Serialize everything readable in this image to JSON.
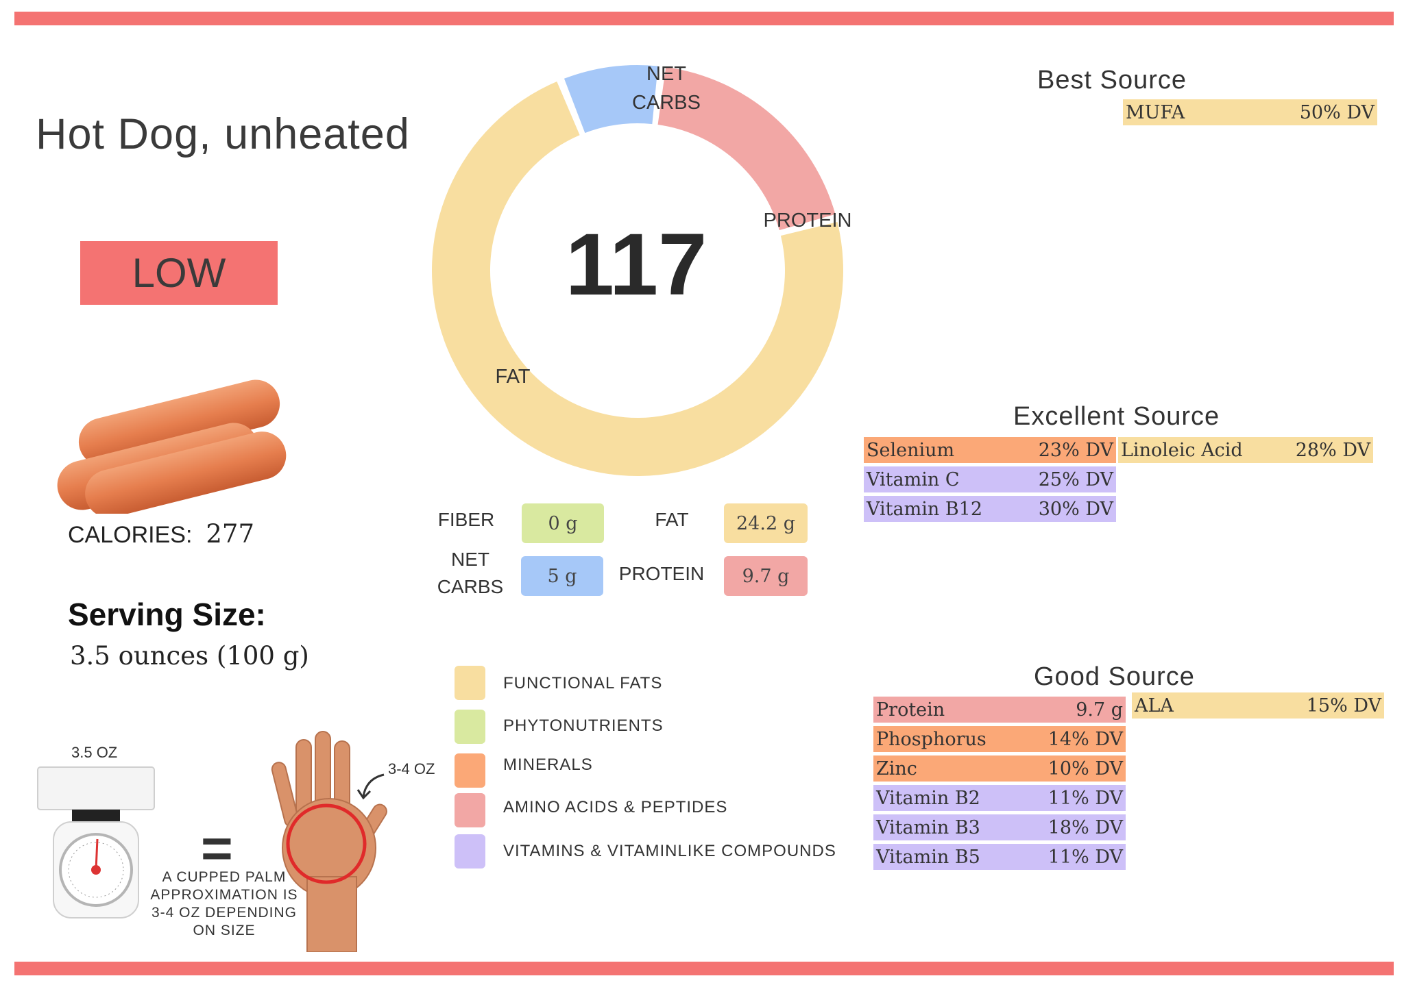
{
  "title": "Hot Dog, unheated",
  "badge": "LOW",
  "calories": {
    "label": "CALORIES:",
    "value": "277"
  },
  "serving": {
    "label": "Serving Size:",
    "value": "3.5 ounces (100 g)"
  },
  "donut": {
    "center_value": "117",
    "segments": [
      {
        "name": "NET CARBS",
        "share": 0.08,
        "color": "#a6c8f8"
      },
      {
        "name": "PROTEIN",
        "share": 0.19,
        "color": "#f2a7a5"
      },
      {
        "name": "FAT",
        "share": 0.73,
        "color": "#f8dea0"
      }
    ],
    "labels": {
      "net_carbs_1": "NET",
      "net_carbs_2": "CARBS",
      "protein": "PROTEIN",
      "fat": "FAT"
    }
  },
  "macros": {
    "fiber": {
      "label": "FIBER",
      "value": "0 g"
    },
    "fat": {
      "label": "FAT",
      "value": "24.2 g"
    },
    "net_carbs": {
      "label_1": "NET",
      "label_2": "CARBS",
      "value": "5 g"
    },
    "protein": {
      "label": "PROTEIN",
      "value": "9.7 g"
    }
  },
  "legend": [
    {
      "label": "FUNCTIONAL  FATS",
      "color": "#f8dea0"
    },
    {
      "label": "PHYTONUTRIENTS",
      "color": "#d9e9a0"
    },
    {
      "label": "MINERALS",
      "color": "#fba877"
    },
    {
      "label": "AMINO ACIDS & PEPTIDES",
      "color": "#f2a7a5"
    },
    {
      "label": "VITAMINS & VITAMINLIKE COMPOUNDS",
      "color": "#cdc0f8"
    }
  ],
  "best_source": {
    "heading": "Best Source",
    "rows": [
      {
        "name": "MUFA",
        "value": "50% DV"
      }
    ]
  },
  "excellent_source": {
    "heading": "Excellent Source",
    "left": [
      {
        "name": "Selenium",
        "value": "23% DV"
      },
      {
        "name": "Vitamin C",
        "value": "25% DV"
      },
      {
        "name": "Vitamin B12",
        "value": "30% DV"
      }
    ],
    "right": [
      {
        "name": "Linoleic Acid",
        "value": "28% DV"
      }
    ]
  },
  "good_source": {
    "heading": "Good Source",
    "left": [
      {
        "name": "Protein",
        "value": "9.7 g"
      },
      {
        "name": "Phosphorus",
        "value": "14% DV"
      },
      {
        "name": "Zinc",
        "value": "10% DV"
      },
      {
        "name": "Vitamin B2",
        "value": "11% DV"
      },
      {
        "name": "Vitamin B3",
        "value": "18% DV"
      },
      {
        "name": "Vitamin B5",
        "value": "11% DV"
      }
    ],
    "right": [
      {
        "name": "ALA",
        "value": "15% DV"
      }
    ]
  },
  "portion": {
    "scale_label": "3.5 OZ",
    "hand_label": "3-4 OZ",
    "equals": "=",
    "note_1": "A CUPPED PALM",
    "note_2": "APPROXIMATION IS",
    "note_3": "3-4 OZ DEPENDING",
    "note_4": "ON SIZE"
  }
}
